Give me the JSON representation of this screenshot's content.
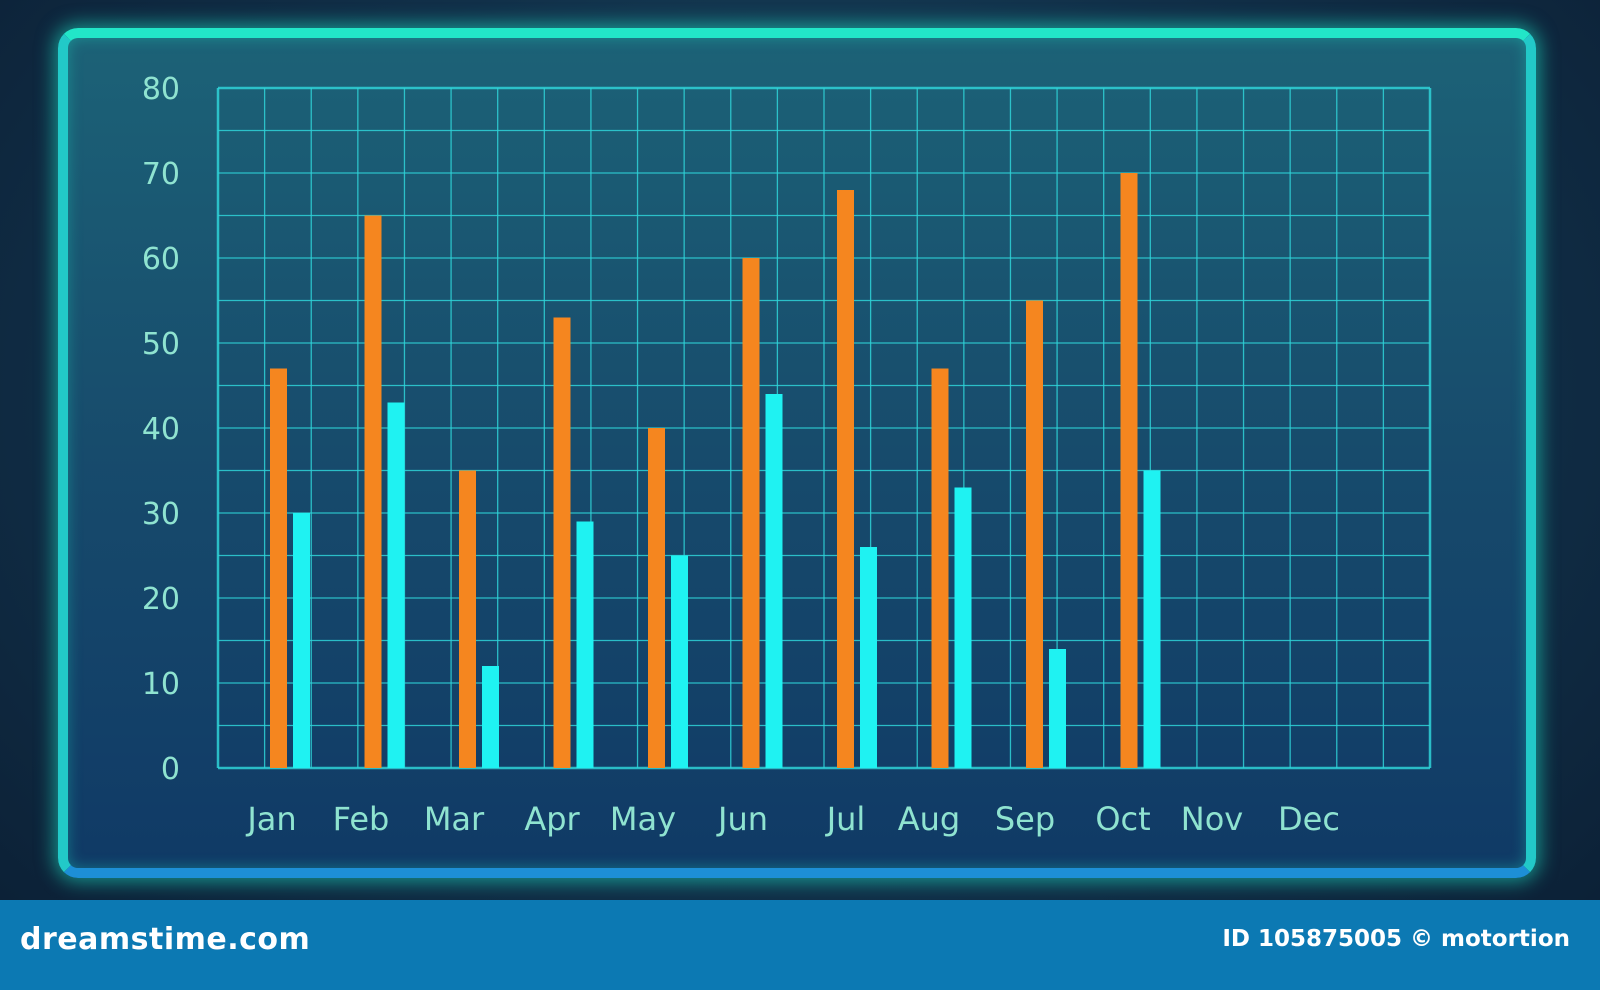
{
  "chart_data": {
    "type": "bar",
    "title": "",
    "xlabel": "",
    "ylabel": "",
    "categories": [
      "Jan",
      "Feb",
      "Mar",
      "Apr",
      "May",
      "Jun",
      "Jul",
      "Aug",
      "Sep",
      "Oct",
      "Nov",
      "Dec"
    ],
    "series": [
      {
        "color": "#f5861f",
        "values": [
          47,
          65,
          35,
          53,
          40,
          60,
          68,
          47,
          55,
          70,
          null,
          null
        ]
      },
      {
        "color": "#1ff2f2",
        "values": [
          30,
          43,
          12,
          29,
          25,
          44,
          26,
          33,
          14,
          35,
          null,
          null
        ]
      }
    ],
    "ylim": [
      0,
      80
    ],
    "yticks": [
      0,
      10,
      20,
      30,
      40,
      50,
      60,
      70,
      80
    ],
    "grid": true,
    "legend": "none"
  },
  "footer": {
    "brand": "dreamstime.com",
    "credit": "ID 105875005 © motortion"
  },
  "colors": {
    "grid": "#2fd3d8",
    "tick_label": "#8fe3d0",
    "panel_border": "#22e6c8"
  }
}
